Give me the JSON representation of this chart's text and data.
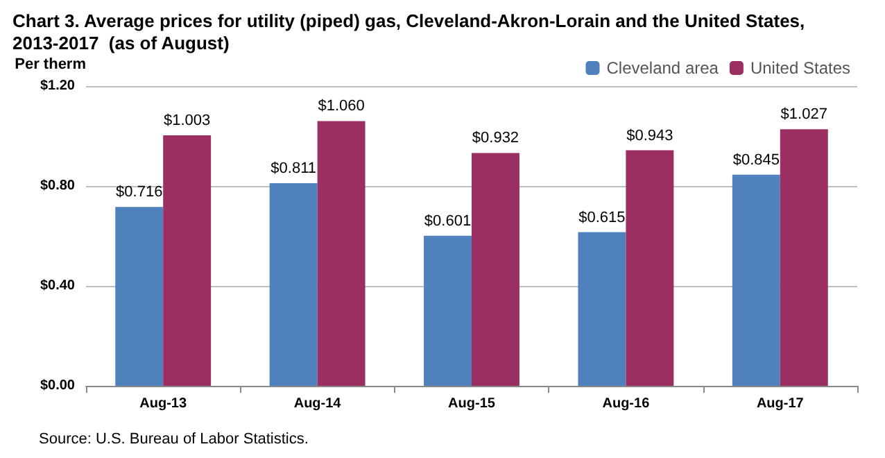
{
  "chart_data": {
    "type": "bar",
    "title": "Chart 3. Average prices for utility (piped) gas, Cleveland-Akron-Lorain and the United States, 2013-2017  (as of August)",
    "ylabel": "Per therm",
    "annotations": [
      "Source: U.S. Bureau of Labor Statistics."
    ],
    "categories": [
      "Aug-13",
      "Aug-14",
      "Aug-15",
      "Aug-16",
      "Aug-17"
    ],
    "series": [
      {
        "name": "Cleveland area",
        "color": "#4f81bd",
        "values": [
          0.716,
          0.811,
          0.601,
          0.615,
          0.845
        ],
        "value_labels": [
          "$0.716",
          "$0.811",
          "$0.601",
          "$0.615",
          "$0.845"
        ]
      },
      {
        "name": "United States",
        "color": "#9b2f62",
        "values": [
          1.003,
          1.06,
          0.932,
          0.943,
          1.027
        ],
        "value_labels": [
          "$1.003",
          "$1.060",
          "$0.932",
          "$0.943",
          "$1.027"
        ]
      }
    ],
    "ylim": [
      0,
      1.2
    ],
    "yticks": [
      {
        "value": 0,
        "label": "$0.00"
      },
      {
        "value": 0.4,
        "label": "$0.40"
      },
      {
        "value": 0.8,
        "label": "$0.80"
      },
      {
        "value": 1.2,
        "label": "$1.20"
      }
    ],
    "grid": "y",
    "legend": "top right"
  }
}
